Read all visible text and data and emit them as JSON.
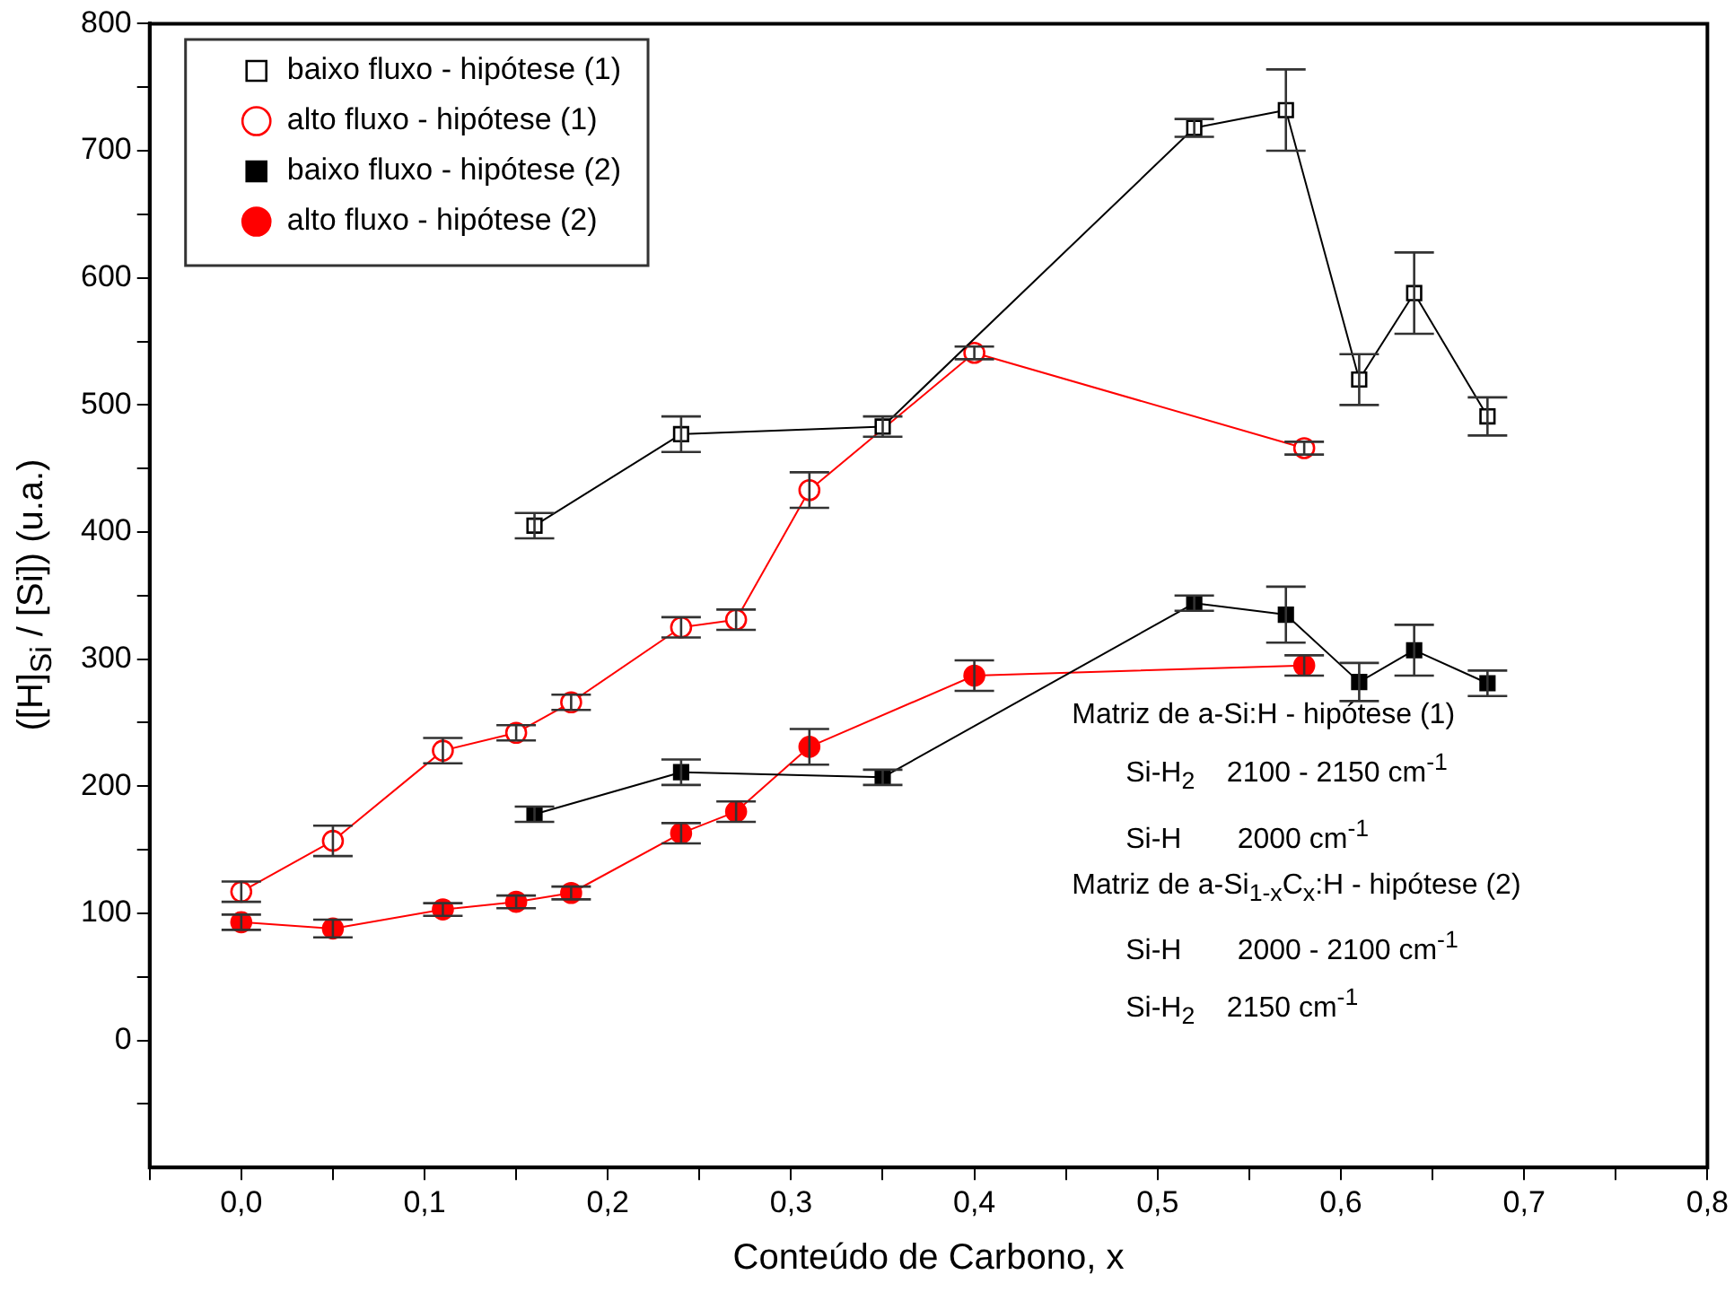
{
  "chart_data": {
    "type": "line",
    "xlabel": "Conteúdo de Carbono, x",
    "ylabel": "([H]$_{Si}$ / [Si]) (u.a.)",
    "xlim": [
      -0.05,
      0.8
    ],
    "xticks": [
      {
        "value": -0.05,
        "label": null
      },
      {
        "value": 0,
        "label": "0,0"
      },
      {
        "value": 0.05,
        "label": null
      },
      {
        "value": 0.1,
        "label": "0,1"
      },
      {
        "value": 0.15,
        "label": null
      },
      {
        "value": 0.2,
        "label": "0,2"
      },
      {
        "value": 0.25,
        "label": null
      },
      {
        "value": 0.3,
        "label": "0,3"
      },
      {
        "value": 0.35,
        "label": null
      },
      {
        "value": 0.4,
        "label": "0,4"
      },
      {
        "value": 0.45,
        "label": null
      },
      {
        "value": 0.5,
        "label": "0,5"
      },
      {
        "value": 0.55,
        "label": null
      },
      {
        "value": 0.6,
        "label": "0,6"
      },
      {
        "value": 0.65,
        "label": null
      },
      {
        "value": 0.7,
        "label": "0,7"
      },
      {
        "value": 0.75,
        "label": null
      },
      {
        "value": 0.8,
        "label": "0,8"
      }
    ],
    "ylim": [
      -100,
      800
    ],
    "yticks": [
      {
        "value": -50,
        "label": null
      },
      0,
      {
        "value": 50,
        "label": null
      },
      100,
      {
        "value": 150,
        "label": null
      },
      200,
      {
        "value": 250,
        "label": null
      },
      300,
      {
        "value": 350,
        "label": null
      },
      400,
      {
        "value": 450,
        "label": null
      },
      500,
      {
        "value": 550,
        "label": null
      },
      600,
      {
        "value": 650,
        "label": null
      },
      700,
      {
        "value": 750,
        "label": null
      },
      800
    ],
    "grid": false,
    "legend": "top left",
    "line_style": "solid",
    "series": [
      {
        "name": "baixo fluxo - hipótese (1)",
        "color": "#000000",
        "marker": "square-open",
        "x": [
          0.16,
          0.24,
          0.35,
          0.52,
          0.57,
          0.61,
          0.64,
          0.68
        ],
        "values": [
          405,
          477,
          483,
          718,
          732,
          520,
          588,
          491
        ],
        "errors": [
          10,
          14,
          8,
          7,
          32,
          20,
          32,
          15
        ]
      },
      {
        "name": "alto fluxo - hipótese (1)",
        "color": "#ff0000",
        "marker": "circle-open",
        "x": [
          0,
          0.05,
          0.11,
          0.15,
          0.18,
          0.24,
          0.27,
          0.31,
          0.4,
          0.58
        ],
        "values": [
          117,
          157,
          228,
          242,
          266,
          325,
          331,
          433,
          541,
          466
        ],
        "errors": [
          8,
          12,
          10,
          6,
          6,
          8,
          8,
          14,
          5,
          5
        ]
      },
      {
        "name": "baixo fluxo - hipótese (2)",
        "color": "#000000",
        "marker": "square",
        "x": [
          0.16,
          0.24,
          0.35,
          0.52,
          0.57,
          0.61,
          0.64,
          0.68
        ],
        "values": [
          178,
          211,
          207,
          344,
          335,
          282,
          307,
          281
        ],
        "errors": [
          6,
          10,
          6,
          6,
          22,
          15,
          20,
          10
        ]
      },
      {
        "name": "alto fluxo - hipótese (2)",
        "color": "#ff0000",
        "marker": "circle",
        "x": [
          0,
          0.05,
          0.11,
          0.15,
          0.18,
          0.24,
          0.27,
          0.31,
          0.4,
          0.58
        ],
        "values": [
          93,
          88,
          103,
          109,
          116,
          163,
          180,
          231,
          287,
          295
        ],
        "errors": [
          6,
          7,
          5,
          5,
          5,
          8,
          8,
          14,
          12,
          8
        ]
      }
    ],
    "annotations": [
      "Matriz de a-Si:H - hipótese (1)",
      "Si-H$_{2}$    2100 - 2150 cm$^{-1}$",
      "Si-H       2000 cm$^{-1}$",
      "Matriz de a-Si$_{1-x}$C$_{x}$:H - hipótese (2)",
      "Si-H       2000 - 2100 cm$^{-1}$",
      "Si-H$_{2}$    2150 cm$^{-1}$"
    ]
  }
}
